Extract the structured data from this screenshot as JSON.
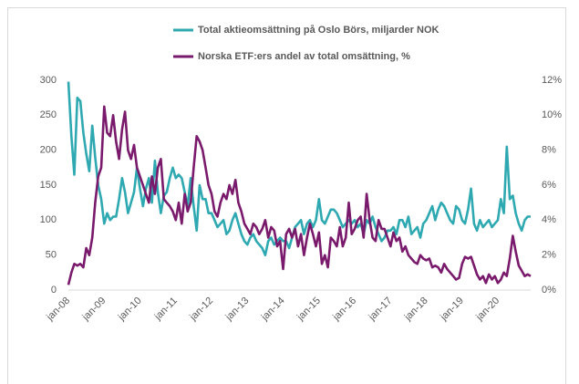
{
  "chart_data": {
    "type": "line",
    "categories": [
      "jan-08",
      null,
      null,
      null,
      null,
      null,
      null,
      null,
      null,
      null,
      null,
      null,
      "jan-09",
      null,
      null,
      null,
      null,
      null,
      null,
      null,
      null,
      null,
      null,
      null,
      "jan-10",
      null,
      null,
      null,
      null,
      null,
      null,
      null,
      null,
      null,
      null,
      null,
      "jan-11",
      null,
      null,
      null,
      null,
      null,
      null,
      null,
      null,
      null,
      null,
      null,
      "jan-12",
      null,
      null,
      null,
      null,
      null,
      null,
      null,
      null,
      null,
      null,
      null,
      "jan-13",
      null,
      null,
      null,
      null,
      null,
      null,
      null,
      null,
      null,
      null,
      null,
      "jan-14",
      null,
      null,
      null,
      null,
      null,
      null,
      null,
      null,
      null,
      null,
      null,
      "jan-15",
      null,
      null,
      null,
      null,
      null,
      null,
      null,
      null,
      null,
      null,
      null,
      "jan-16",
      null,
      null,
      null,
      null,
      null,
      null,
      null,
      null,
      null,
      null,
      null,
      "jan-17",
      null,
      null,
      null,
      null,
      null,
      null,
      null,
      null,
      null,
      null,
      null,
      "jan-18",
      null,
      null,
      null,
      null,
      null,
      null,
      null,
      null,
      null,
      null,
      null,
      "jan-19",
      null,
      null,
      null,
      null,
      null,
      null,
      null,
      null,
      null,
      null,
      null,
      "jan-20",
      null,
      null,
      null,
      null,
      null,
      null,
      null,
      null,
      null,
      null,
      null
    ],
    "series": [
      {
        "name": "Total aktieomsättning på Oslo Börs, miljarder NOK",
        "color": "#2ea9b1",
        "axis": "y",
        "values": [
          298,
          220,
          165,
          275,
          270,
          225,
          195,
          170,
          235,
          190,
          150,
          130,
          95,
          110,
          100,
          105,
          105,
          130,
          160,
          140,
          110,
          125,
          140,
          175,
          145,
          120,
          145,
          160,
          125,
          185,
          140,
          110,
          135,
          140,
          160,
          175,
          160,
          165,
          160,
          140,
          120,
          160,
          120,
          85,
          150,
          130,
          130,
          110,
          110,
          100,
          90,
          95,
          100,
          80,
          85,
          100,
          110,
          95,
          80,
          70,
          65,
          75,
          80,
          70,
          65,
          60,
          50,
          70,
          75,
          65,
          70,
          75,
          70,
          70,
          60,
          75,
          90,
          95,
          100,
          80,
          95,
          100,
          90,
          100,
          130,
          100,
          95,
          105,
          115,
          115,
          110,
          100,
          90,
          95,
          100,
          95,
          100,
          90,
          95,
          80,
          100,
          95,
          105,
          90,
          80,
          70,
          75,
          85,
          85,
          90,
          80,
          100,
          100,
          90,
          105,
          80,
          85,
          90,
          75,
          95,
          100,
          110,
          120,
          100,
          115,
          125,
          120,
          110,
          100,
          95,
          120,
          115,
          100,
          95,
          115,
          145,
          95,
          85,
          100,
          90,
          95,
          100,
          90,
          95,
          100,
          130,
          110,
          205,
          130,
          135,
          110,
          95,
          85,
          100,
          105,
          105
        ]
      },
      {
        "name": "Norska ETF:ers andel av total omsättning, %",
        "color": "#7a1a6c",
        "axis": "y2",
        "values": [
          0.3,
          1.0,
          1.5,
          1.4,
          1.5,
          1.3,
          2.4,
          2.0,
          3.0,
          5.0,
          6.5,
          7.0,
          10.5,
          9.0,
          8.8,
          10.0,
          8.5,
          7.5,
          9.2,
          10.2,
          8.0,
          7.5,
          8.3,
          7.0,
          6.5,
          6.0,
          5.5,
          5.0,
          6.5,
          5.5,
          7.0,
          7.5,
          5.2,
          5.0,
          4.8,
          4.5,
          4.0,
          5.0,
          3.8,
          5.5,
          4.5,
          5.0,
          7.0,
          8.8,
          8.5,
          8.0,
          7.0,
          6.0,
          5.5,
          4.5,
          4.2,
          5.0,
          5.5,
          5.2,
          6.0,
          5.5,
          6.3,
          5.0,
          4.5,
          3.8,
          3.5,
          3.2,
          3.8,
          3.6,
          3.2,
          3.5,
          4.0,
          3.0,
          3.6,
          3.4,
          2.5,
          2.8,
          1.2,
          3.2,
          3.5,
          3.0,
          3.5,
          2.5,
          3.2,
          2.0,
          3.0,
          3.8,
          3.2,
          2.5,
          3.3,
          1.5,
          2.0,
          1.3,
          3.0,
          2.8,
          2.5,
          3.6,
          2.5,
          3.0,
          5.0,
          3.2,
          3.5,
          4.0,
          4.2,
          3.0,
          5.5,
          4.0,
          3.0,
          2.8,
          4.0,
          3.5,
          3.5,
          3.0,
          2.5,
          3.3,
          2.8,
          3.0,
          2.2,
          2.5,
          2.0,
          1.8,
          1.6,
          1.5,
          2.0,
          1.8,
          1.7,
          1.8,
          1.3,
          1.4,
          1.3,
          1.0,
          1.5,
          1.2,
          1.0,
          0.8,
          0.6,
          0.7,
          1.5,
          1.9,
          1.8,
          1.9,
          1.4,
          0.9,
          0.6,
          0.8,
          0.4,
          0.9,
          0.6,
          0.8,
          0.4,
          0.6,
          1.0,
          0.8,
          1.8,
          3.1,
          2.2,
          1.4,
          1.1,
          0.8,
          0.9,
          0.8
        ]
      }
    ],
    "ylim": [
      0,
      300
    ],
    "yticks": [
      0,
      50,
      100,
      150,
      200,
      250,
      300
    ],
    "y2lim": [
      0,
      12
    ],
    "y2ticks": [
      {
        "value": 0,
        "label": "0%"
      },
      {
        "value": 2,
        "label": "2%"
      },
      {
        "value": 4,
        "label": "4%"
      },
      {
        "value": 6,
        "label": "6%"
      },
      {
        "value": 8,
        "label": "8%"
      },
      {
        "value": 10,
        "label": "10%"
      },
      {
        "value": 12,
        "label": "12%"
      }
    ],
    "legend": "top"
  }
}
